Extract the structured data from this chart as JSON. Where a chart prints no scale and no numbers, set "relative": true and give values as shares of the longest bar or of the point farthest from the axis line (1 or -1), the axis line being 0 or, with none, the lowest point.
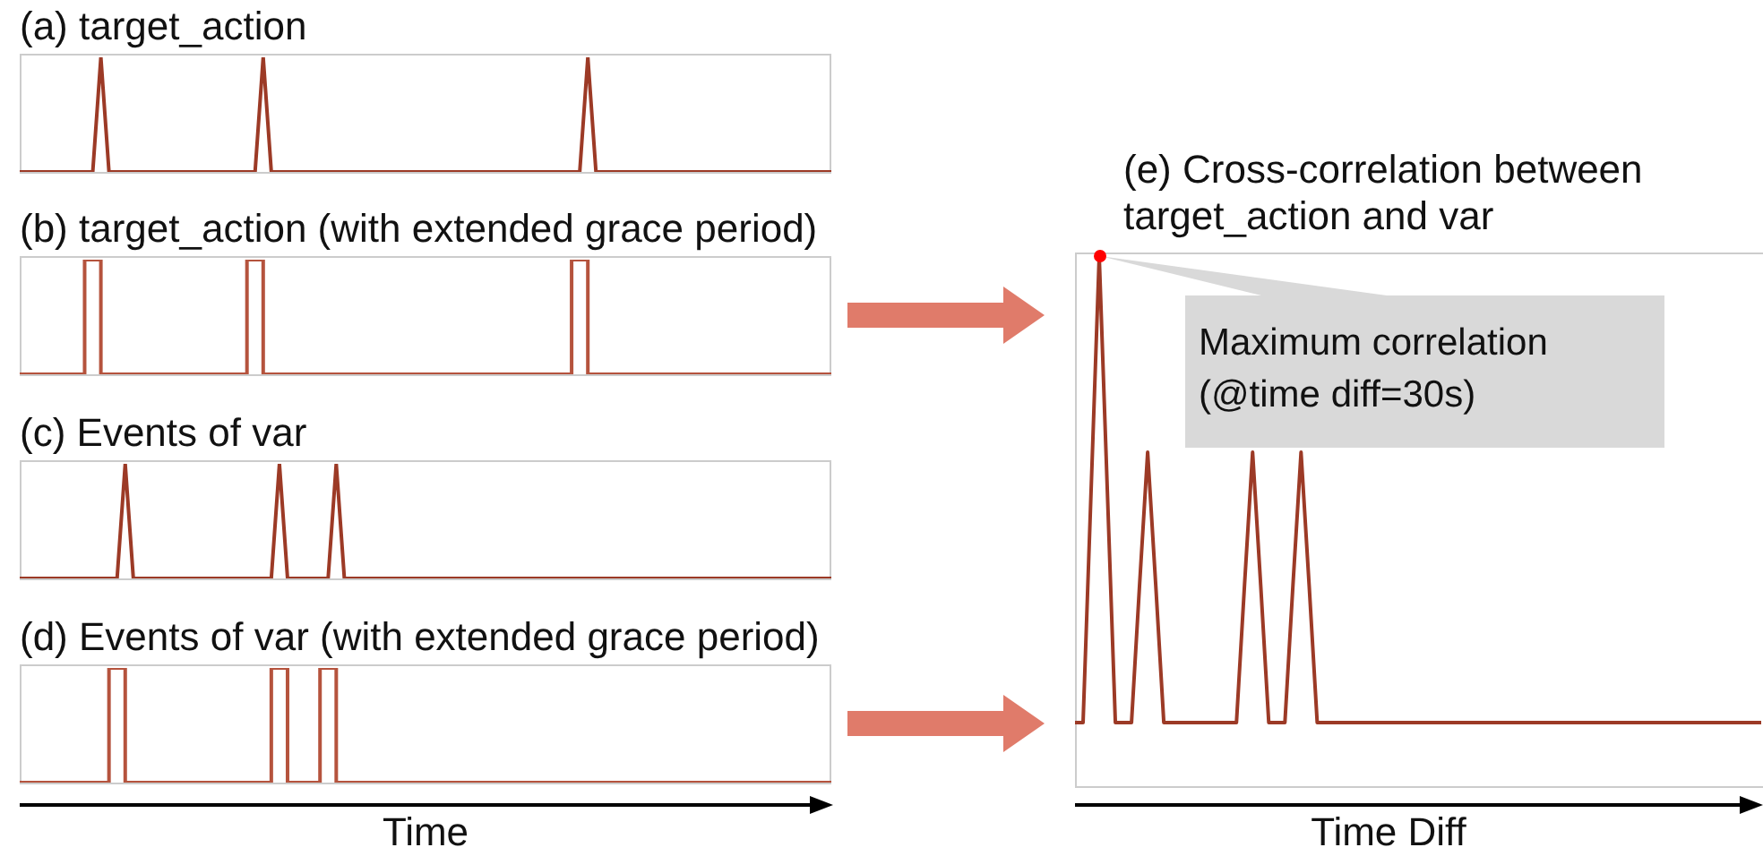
{
  "chart_data": [
    {
      "type": "line",
      "title": "(a) target_action",
      "relative": true,
      "color": "#9c3a26",
      "categories": [
        null,
        null,
        null,
        null,
        null,
        null,
        null,
        null,
        null,
        null,
        null,
        null,
        null,
        null,
        null,
        null,
        null,
        null,
        null,
        null,
        null,
        null,
        null,
        null,
        null,
        null,
        null,
        null,
        null,
        null,
        null,
        null,
        null,
        null,
        null,
        null,
        null,
        null,
        null,
        null,
        null,
        null,
        null,
        null,
        null,
        null,
        null,
        null,
        null,
        null,
        null,
        null,
        null,
        null,
        null,
        null,
        null,
        null,
        null,
        null,
        null,
        null,
        null,
        null,
        null,
        null,
        null,
        null,
        null,
        null,
        null,
        null,
        null,
        null,
        null,
        null,
        null,
        null,
        null,
        null,
        null,
        null,
        null,
        null,
        null,
        null,
        null,
        null,
        null,
        null,
        null,
        null,
        null,
        null,
        null,
        null,
        null,
        null,
        null,
        null,
        null
      ],
      "values": [
        0,
        0,
        0,
        0,
        0,
        0,
        0,
        0,
        0,
        0,
        1,
        0,
        0,
        0,
        0,
        0,
        0,
        0,
        0,
        0,
        0,
        0,
        0,
        0,
        0,
        0,
        0,
        0,
        0,
        0,
        1,
        0,
        0,
        0,
        0,
        0,
        0,
        0,
        0,
        0,
        0,
        0,
        0,
        0,
        0,
        0,
        0,
        0,
        0,
        0,
        0,
        0,
        0,
        0,
        0,
        0,
        0,
        0,
        0,
        0,
        0,
        0,
        0,
        0,
        0,
        0,
        0,
        0,
        0,
        0,
        1,
        0,
        0,
        0,
        0,
        0,
        0,
        0,
        0,
        0,
        0,
        0,
        0,
        0,
        0,
        0,
        0,
        0,
        0,
        0,
        0,
        0,
        0,
        0,
        0,
        0,
        0,
        0,
        0,
        0,
        0
      ]
    },
    {
      "type": "step",
      "title": "(b) target_action (with extended grace period)",
      "relative": true,
      "color": "#b5533d",
      "categories": [
        null,
        null,
        null,
        null,
        null,
        null,
        null,
        null,
        null,
        null,
        null,
        null,
        null,
        null,
        null,
        null,
        null,
        null,
        null,
        null,
        null,
        null,
        null,
        null,
        null,
        null,
        null,
        null,
        null,
        null,
        null,
        null,
        null,
        null,
        null,
        null,
        null,
        null,
        null,
        null,
        null,
        null,
        null,
        null,
        null,
        null,
        null,
        null,
        null,
        null,
        null,
        null,
        null,
        null,
        null,
        null,
        null,
        null,
        null,
        null,
        null,
        null,
        null,
        null,
        null,
        null,
        null,
        null,
        null,
        null,
        null,
        null,
        null,
        null,
        null,
        null,
        null,
        null,
        null,
        null,
        null,
        null,
        null,
        null,
        null,
        null,
        null,
        null,
        null,
        null,
        null,
        null,
        null,
        null,
        null,
        null,
        null,
        null,
        null,
        null,
        null
      ],
      "values": [
        0,
        0,
        0,
        0,
        0,
        0,
        0,
        0,
        0,
        1,
        1,
        0,
        0,
        0,
        0,
        0,
        0,
        0,
        0,
        0,
        0,
        0,
        0,
        0,
        0,
        0,
        0,
        0,
        0,
        1,
        1,
        0,
        0,
        0,
        0,
        0,
        0,
        0,
        0,
        0,
        0,
        0,
        0,
        0,
        0,
        0,
        0,
        0,
        0,
        0,
        0,
        0,
        0,
        0,
        0,
        0,
        0,
        0,
        0,
        0,
        0,
        0,
        0,
        0,
        0,
        0,
        0,
        0,
        0,
        1,
        1,
        0,
        0,
        0,
        0,
        0,
        0,
        0,
        0,
        0,
        0,
        0,
        0,
        0,
        0,
        0,
        0,
        0,
        0,
        0,
        0,
        0,
        0,
        0,
        0,
        0,
        0,
        0,
        0,
        0,
        0
      ]
    },
    {
      "type": "line",
      "title": "(c) Events of var",
      "relative": true,
      "color": "#9c3a26",
      "categories": [
        null,
        null,
        null,
        null,
        null,
        null,
        null,
        null,
        null,
        null,
        null,
        null,
        null,
        null,
        null,
        null,
        null,
        null,
        null,
        null,
        null,
        null,
        null,
        null,
        null,
        null,
        null,
        null,
        null,
        null,
        null,
        null,
        null,
        null,
        null,
        null,
        null,
        null,
        null,
        null,
        null,
        null,
        null,
        null,
        null,
        null,
        null,
        null,
        null,
        null,
        null,
        null,
        null,
        null,
        null,
        null,
        null,
        null,
        null,
        null,
        null,
        null,
        null,
        null,
        null,
        null,
        null,
        null,
        null,
        null,
        null,
        null,
        null,
        null,
        null,
        null,
        null,
        null,
        null,
        null,
        null,
        null,
        null,
        null,
        null,
        null,
        null,
        null,
        null,
        null,
        null,
        null,
        null,
        null,
        null,
        null,
        null,
        null,
        null,
        null,
        null
      ],
      "values": [
        0,
        0,
        0,
        0,
        0,
        0,
        0,
        0,
        0,
        0,
        0,
        0,
        0,
        1,
        0,
        0,
        0,
        0,
        0,
        0,
        0,
        0,
        0,
        0,
        0,
        0,
        0,
        0,
        0,
        0,
        0,
        0,
        1,
        0,
        0,
        0,
        0,
        0,
        0,
        1,
        0,
        0,
        0,
        0,
        0,
        0,
        0,
        0,
        0,
        0,
        0,
        0,
        0,
        0,
        0,
        0,
        0,
        0,
        0,
        0,
        0,
        0,
        0,
        0,
        0,
        0,
        0,
        0,
        0,
        0,
        0,
        0,
        0,
        0,
        0,
        0,
        0,
        0,
        0,
        0,
        0,
        0,
        0,
        0,
        0,
        0,
        0,
        0,
        0,
        0,
        0,
        0,
        0,
        0,
        0,
        0,
        0,
        0,
        0,
        0,
        0
      ]
    },
    {
      "type": "step",
      "title": "(d) Events of var (with extended grace period)",
      "xlabel": "Time",
      "relative": true,
      "color": "#b5533d",
      "categories": [
        null,
        null,
        null,
        null,
        null,
        null,
        null,
        null,
        null,
        null,
        null,
        null,
        null,
        null,
        null,
        null,
        null,
        null,
        null,
        null,
        null,
        null,
        null,
        null,
        null,
        null,
        null,
        null,
        null,
        null,
        null,
        null,
        null,
        null,
        null,
        null,
        null,
        null,
        null,
        null,
        null,
        null,
        null,
        null,
        null,
        null,
        null,
        null,
        null,
        null,
        null,
        null,
        null,
        null,
        null,
        null,
        null,
        null,
        null,
        null,
        null,
        null,
        null,
        null,
        null,
        null,
        null,
        null,
        null,
        null,
        null,
        null,
        null,
        null,
        null,
        null,
        null,
        null,
        null,
        null,
        null,
        null,
        null,
        null,
        null,
        null,
        null,
        null,
        null,
        null,
        null,
        null,
        null,
        null,
        null,
        null,
        null,
        null,
        null,
        null,
        null
      ],
      "values": [
        0,
        0,
        0,
        0,
        0,
        0,
        0,
        0,
        0,
        0,
        0,
        0,
        1,
        1,
        0,
        0,
        0,
        0,
        0,
        0,
        0,
        0,
        0,
        0,
        0,
        0,
        0,
        0,
        0,
        0,
        0,
        0,
        1,
        1,
        0,
        0,
        0,
        0,
        1,
        1,
        0,
        0,
        0,
        0,
        0,
        0,
        0,
        0,
        0,
        0,
        0,
        0,
        0,
        0,
        0,
        0,
        0,
        0,
        0,
        0,
        0,
        0,
        0,
        0,
        0,
        0,
        0,
        0,
        0,
        0,
        0,
        0,
        0,
        0,
        0,
        0,
        0,
        0,
        0,
        0,
        0,
        0,
        0,
        0,
        0,
        0,
        0,
        0,
        0,
        0,
        0,
        0,
        0,
        0,
        0,
        0,
        0,
        0,
        0,
        0,
        0
      ]
    },
    {
      "type": "line",
      "title": "(e) Cross-correlation between target_action and var",
      "xlabel": "Time Diff",
      "relative": true,
      "color": "#9c3a26",
      "annotations": [
        "Maximum correlation (@time diff=30s)"
      ],
      "categories": [
        null,
        null,
        null,
        null,
        null,
        null,
        null,
        null,
        null,
        null,
        null,
        null,
        null,
        null,
        null,
        null,
        null,
        null,
        null,
        null,
        null,
        null,
        null,
        null,
        null,
        null,
        null,
        null,
        null,
        null,
        null,
        null,
        null,
        null,
        null,
        null,
        null,
        null,
        null,
        null,
        null,
        null,
        null,
        null,
        null,
        null,
        null,
        null,
        null,
        null,
        null,
        null,
        null,
        null,
        null,
        null,
        null,
        null,
        null,
        null,
        null,
        null,
        null,
        null,
        null,
        null,
        null,
        null,
        null,
        null,
        null,
        null,
        null,
        null,
        null,
        null,
        null,
        null,
        null,
        null,
        null,
        null,
        null,
        null,
        null,
        null
      ],
      "values": [
        0.12,
        0.12,
        0.56,
        1,
        0.56,
        0.12,
        0.12,
        0.12,
        0.38,
        0.63,
        0.38,
        0.12,
        0.12,
        0.12,
        0.12,
        0.12,
        0.12,
        0.12,
        0.12,
        0.12,
        0.12,
        0.38,
        0.63,
        0.38,
        0.12,
        0.12,
        0.12,
        0.38,
        0.63,
        0.38,
        0.12,
        0.12,
        0.12,
        0.12,
        0.12,
        0.12,
        0.12,
        0.12,
        0.12,
        0.12,
        0.12,
        0.12,
        0.12,
        0.12,
        0.12,
        0.12,
        0.12,
        0.12,
        0.12,
        0.12,
        0.12,
        0.12,
        0.12,
        0.12,
        0.12,
        0.12,
        0.12,
        0.12,
        0.12,
        0.12,
        0.12,
        0.12,
        0.12,
        0.12,
        0.12,
        0.12,
        0.12,
        0.12,
        0.12,
        0.12,
        0.12,
        0.12,
        0.12,
        0.12,
        0.12,
        0.12,
        0.12,
        0.12,
        0.12,
        0.12,
        0.12,
        0.12,
        0.12,
        0.12,
        0.12,
        0.12
      ]
    }
  ]
}
